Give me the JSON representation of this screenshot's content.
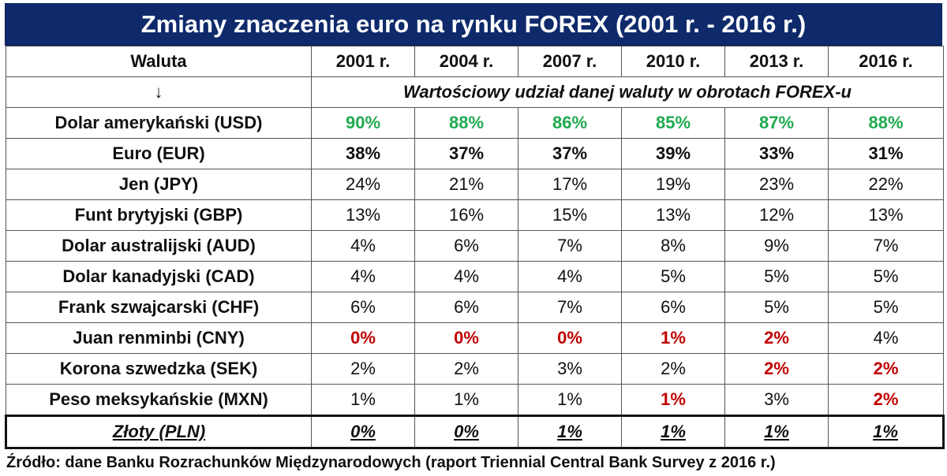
{
  "title": "Zmiany znaczenia euro na rynku FOREX (2001 r. - 2016 r.)",
  "header": {
    "currency_label": "Waluta",
    "arrow": "↓",
    "years": [
      "2001 r.",
      "2004 r.",
      "2007 r.",
      "2010 r.",
      "2013 r.",
      "2016 r."
    ],
    "subheader": "Wartościowy udział danej waluty w obrotach FOREX-u"
  },
  "colors": {
    "title_bg": "#0f2a6b",
    "green": "#1faa4f",
    "red": "#c00000"
  },
  "rows": [
    {
      "name": "Dolar amerykański (USD)",
      "values": [
        "90%",
        "88%",
        "86%",
        "85%",
        "87%",
        "88%"
      ],
      "styles": [
        "green",
        "green",
        "green",
        "green",
        "green",
        "green"
      ]
    },
    {
      "name": "Euro (EUR)",
      "values": [
        "38%",
        "37%",
        "37%",
        "39%",
        "33%",
        "31%"
      ],
      "styles": [
        "bold",
        "bold",
        "bold",
        "bold",
        "bold",
        "bold"
      ]
    },
    {
      "name": "Jen (JPY)",
      "values": [
        "24%",
        "21%",
        "17%",
        "19%",
        "23%",
        "22%"
      ],
      "styles": [
        "",
        "",
        "",
        "",
        "",
        ""
      ]
    },
    {
      "name": "Funt brytyjski (GBP)",
      "values": [
        "13%",
        "16%",
        "15%",
        "13%",
        "12%",
        "13%"
      ],
      "styles": [
        "",
        "",
        "",
        "",
        "",
        ""
      ]
    },
    {
      "name": "Dolar australijski (AUD)",
      "values": [
        "4%",
        "6%",
        "7%",
        "8%",
        "9%",
        "7%"
      ],
      "styles": [
        "",
        "",
        "",
        "",
        "",
        ""
      ]
    },
    {
      "name": "Dolar kanadyjski (CAD)",
      "values": [
        "4%",
        "4%",
        "4%",
        "5%",
        "5%",
        "5%"
      ],
      "styles": [
        "",
        "",
        "",
        "",
        "",
        ""
      ]
    },
    {
      "name": "Frank szwajcarski (CHF)",
      "values": [
        "6%",
        "6%",
        "7%",
        "6%",
        "5%",
        "5%"
      ],
      "styles": [
        "",
        "",
        "",
        "",
        "",
        ""
      ]
    },
    {
      "name": "Juan renminbi (CNY)",
      "values": [
        "0%",
        "0%",
        "0%",
        "1%",
        "2%",
        "4%"
      ],
      "styles": [
        "red",
        "red",
        "red",
        "red",
        "red",
        ""
      ]
    },
    {
      "name": "Korona szwedzka (SEK)",
      "values": [
        "2%",
        "2%",
        "3%",
        "2%",
        "2%",
        "2%"
      ],
      "styles": [
        "",
        "",
        "",
        "",
        "red",
        "red"
      ]
    },
    {
      "name": "Peso meksykańskie (MXN)",
      "values": [
        "1%",
        "1%",
        "1%",
        "1%",
        "3%",
        "2%"
      ],
      "styles": [
        "",
        "",
        "",
        "red",
        "",
        "red"
      ]
    }
  ],
  "pln_row": {
    "name": "Złoty (PLN)",
    "values": [
      "0%",
      "0%",
      "1%",
      "1%",
      "1%",
      "1%"
    ]
  },
  "source": "Źródło: dane Banku Rozrachunków Międzynarodowych (raport Triennial Central Bank Survey z 2016 r.)"
}
